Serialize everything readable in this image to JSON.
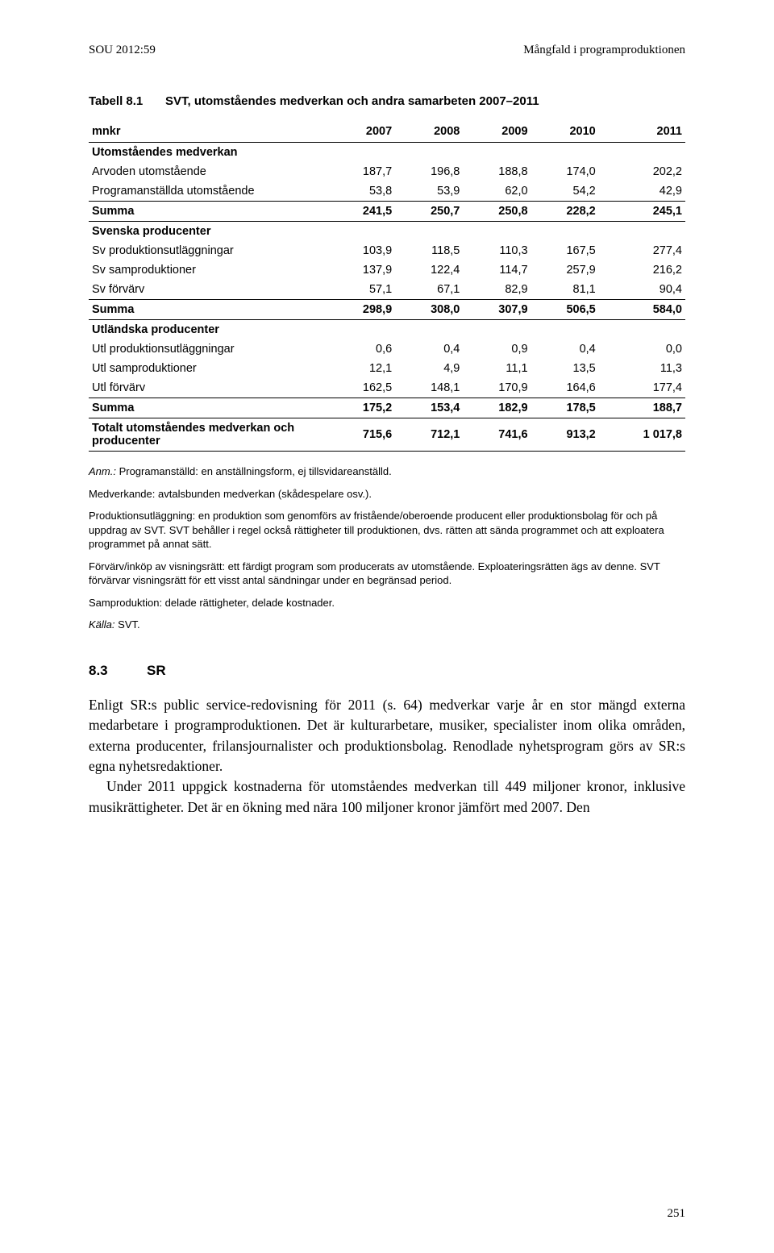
{
  "header": {
    "left": "SOU 2012:59",
    "right": "Mångfald i programproduktionen"
  },
  "table": {
    "title_num": "Tabell 8.1",
    "title_text": "SVT, utomståendes medverkan och andra samarbeten 2007–2011",
    "col_label": "mnkr",
    "years": [
      "2007",
      "2008",
      "2009",
      "2010",
      "2011"
    ],
    "sections": [
      {
        "head": "Utomståendes medverkan",
        "rows": [
          {
            "label": "Arvoden utomstående",
            "vals": [
              "187,7",
              "196,8",
              "188,8",
              "174,0",
              "202,2"
            ]
          },
          {
            "label": "Programanställda utomstående",
            "vals": [
              "53,8",
              "53,9",
              "62,0",
              "54,2",
              "42,9"
            ]
          }
        ],
        "summa": {
          "label": "Summa",
          "vals": [
            "241,5",
            "250,7",
            "250,8",
            "228,2",
            "245,1"
          ]
        }
      },
      {
        "head": "Svenska producenter",
        "rows": [
          {
            "label": "Sv produktionsutläggningar",
            "vals": [
              "103,9",
              "118,5",
              "110,3",
              "167,5",
              "277,4"
            ]
          },
          {
            "label": "Sv samproduktioner",
            "vals": [
              "137,9",
              "122,4",
              "114,7",
              "257,9",
              "216,2"
            ]
          },
          {
            "label": "Sv förvärv",
            "vals": [
              "57,1",
              "67,1",
              "82,9",
              "81,1",
              "90,4"
            ]
          }
        ],
        "summa": {
          "label": "Summa",
          "vals": [
            "298,9",
            "308,0",
            "307,9",
            "506,5",
            "584,0"
          ]
        }
      },
      {
        "head": "Utländska producenter",
        "rows": [
          {
            "label": "Utl produktionsutläggningar",
            "vals": [
              "0,6",
              "0,4",
              "0,9",
              "0,4",
              "0,0"
            ]
          },
          {
            "label": "Utl samproduktioner",
            "vals": [
              "12,1",
              "4,9",
              "11,1",
              "13,5",
              "11,3"
            ]
          },
          {
            "label": "Utl förvärv",
            "vals": [
              "162,5",
              "148,1",
              "170,9",
              "164,6",
              "177,4"
            ]
          }
        ],
        "summa": {
          "label": "Summa",
          "vals": [
            "175,2",
            "153,4",
            "182,9",
            "178,5",
            "188,7"
          ]
        }
      }
    ],
    "total": {
      "label": "Totalt utomståendes medverkan och producenter",
      "vals": [
        "715,6",
        "712,1",
        "741,6",
        "913,2",
        "1 017,8"
      ]
    }
  },
  "notes": {
    "p1_label": "Anm.:",
    "p1_text": " Programanställd: en anställningsform, ej tillsvidareanställd.",
    "p2": "Medverkande: avtalsbunden medverkan (skådespelare osv.).",
    "p3": "Produktionsutläggning: en produktion som genomförs av fristående/oberoende producent eller produktionsbolag för och på uppdrag av SVT. SVT behåller i regel också rättigheter till produktionen, dvs. rätten att sända programmet och att exploatera programmet på annat sätt.",
    "p4": "Förvärv/inköp av visningsrätt: ett färdigt program som producerats av utomstående. Exploateringsrätten ägs av denne. SVT förvärvar visningsrätt för ett visst antal sändningar under en begränsad period.",
    "p5": "Samproduktion: delade rättigheter, delade kostnader.",
    "p6_label": "Källa:",
    "p6_text": " SVT."
  },
  "section83": {
    "num": "8.3",
    "title": "SR"
  },
  "body": {
    "p1": "Enligt SR:s public service-redovisning för 2011 (s. 64) medverkar varje år en stor mängd externa medarbetare i programproduktionen. Det är kulturarbetare, musiker, specialister inom olika områden, externa producenter, frilansjournalister och produktionsbolag. Renodlade nyhetsprogram görs av SR:s egna nyhetsredaktioner.",
    "p2": "Under 2011 uppgick kostnaderna för utomståendes medverkan till 449 miljoner kronor, inklusive musikrättigheter. Det är en ökning med nära 100 miljoner kronor jämfört med 2007. Den"
  },
  "page_number": "251"
}
